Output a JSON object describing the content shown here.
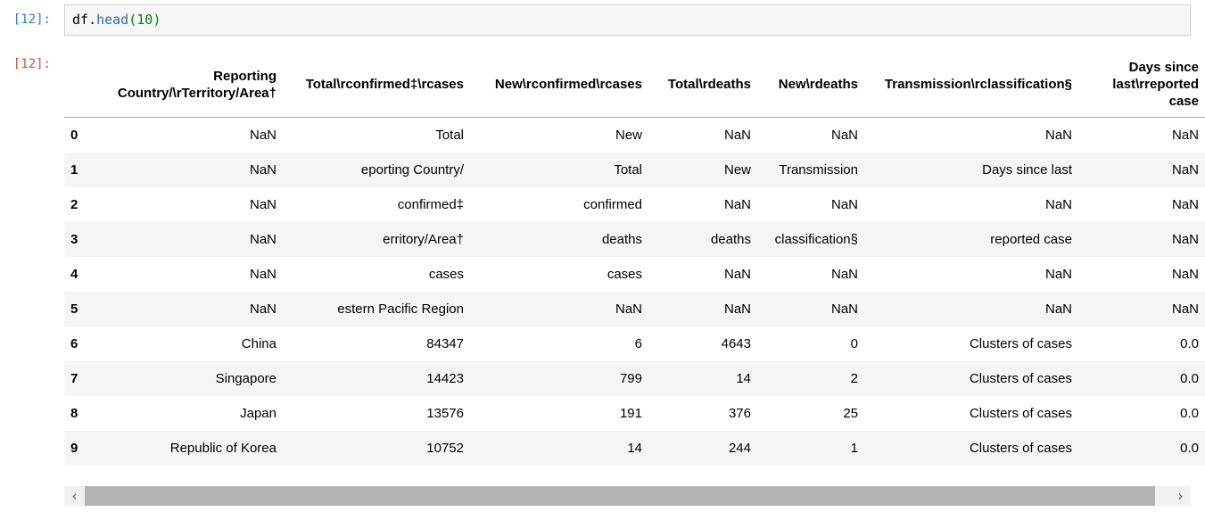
{
  "notebook": {
    "input_prompt": "[12]:",
    "output_prompt": "[12]:",
    "code": {
      "object": "df",
      "dot": ".",
      "method": "head",
      "paren_open": "(",
      "argument": "10",
      "paren_close": ")"
    }
  },
  "table": {
    "columns": [
      "",
      "Reporting Country/\\rTerritory/Area†",
      "Total\\rconfirmed‡\\rcases",
      "New\\rconfirmed\\rcases",
      "Total\\rdeaths",
      "New\\rdeaths",
      "Transmission\\rclassification§",
      "Days since last\\rreported case"
    ],
    "rows": [
      [
        "0",
        "NaN",
        "Total",
        "New",
        "NaN",
        "NaN",
        "NaN",
        "NaN"
      ],
      [
        "1",
        "NaN",
        "eporting Country/",
        "Total",
        "New",
        "Transmission",
        "Days since last",
        "NaN"
      ],
      [
        "2",
        "NaN",
        "confirmed‡",
        "confirmed",
        "NaN",
        "NaN",
        "NaN",
        "NaN"
      ],
      [
        "3",
        "NaN",
        "erritory/Area†",
        "deaths",
        "deaths",
        "classification§",
        "reported case",
        "NaN"
      ],
      [
        "4",
        "NaN",
        "cases",
        "cases",
        "NaN",
        "NaN",
        "NaN",
        "NaN"
      ],
      [
        "5",
        "NaN",
        "estern Pacific Region",
        "NaN",
        "NaN",
        "NaN",
        "NaN",
        "NaN"
      ],
      [
        "6",
        "China",
        "84347",
        "6",
        "4643",
        "0",
        "Clusters of cases",
        "0.0"
      ],
      [
        "7",
        "Singapore",
        "14423",
        "799",
        "14",
        "2",
        "Clusters of cases",
        "0.0"
      ],
      [
        "8",
        "Japan",
        "13576",
        "191",
        "376",
        "25",
        "Clusters of cases",
        "0.0"
      ],
      [
        "9",
        "Republic of Korea",
        "10752",
        "14",
        "244",
        "1",
        "Clusters of cases",
        "0.0"
      ]
    ]
  },
  "scrollbar": {
    "left_icon": "‹",
    "right_icon": "›"
  },
  "colors": {
    "input_prompt": "#307fc1",
    "output_prompt": "#bf5b3d",
    "code_method": "#2b6fa8",
    "code_number": "#008000",
    "row_stripe": "#f5f5f5",
    "header_border": "#a6a6a6",
    "scrollbar_thumb": "#b3b3b3",
    "scrollbar_track": "#f1f1f1"
  }
}
